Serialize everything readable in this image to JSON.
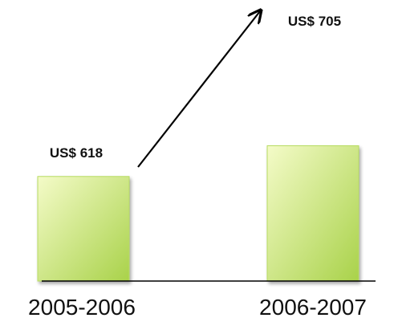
{
  "chart_data": {
    "type": "bar",
    "categories": [
      "2005-2006",
      "2006-2007"
    ],
    "values": [
      618,
      705
    ],
    "value_labels": [
      "US$ 618",
      "US$ 705"
    ],
    "title": "",
    "xlabel": "",
    "ylabel": "",
    "grid": false,
    "colors": {
      "bar_light": "#f4fbc8",
      "bar_dark": "#a9d24a",
      "axis": "#000000"
    },
    "annotations": [
      {
        "type": "arrow",
        "from": "2005-2006",
        "to": "2006-2007"
      }
    ]
  }
}
